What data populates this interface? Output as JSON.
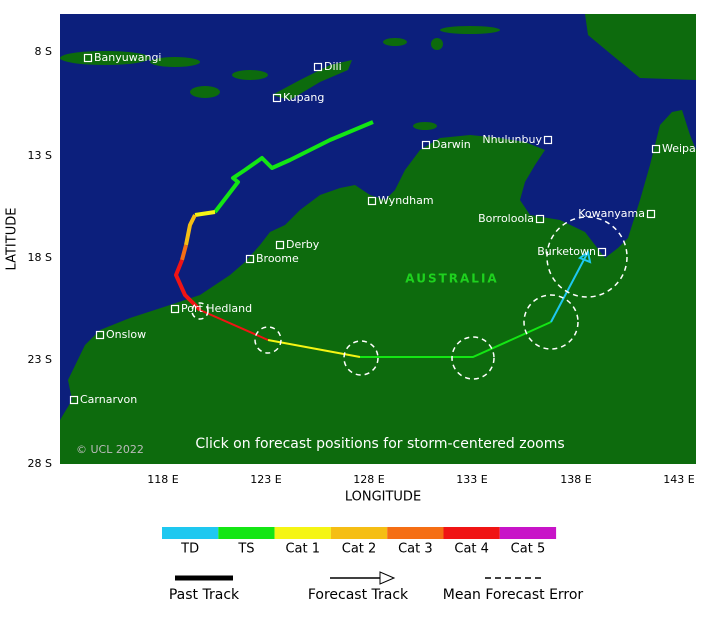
{
  "map": {
    "lat_ticks": [
      "8 S",
      "13 S",
      "18 S",
      "23 S",
      "28 S"
    ],
    "lon_ticks": [
      "118 E",
      "123 E",
      "128 E",
      "133 E",
      "138 E",
      "143 E"
    ],
    "y_label": "LATITUDE",
    "x_label": "LONGITUDE",
    "region_label": "AUSTRALIA",
    "copyright": "© UCL 2022",
    "instruction": "Click on forecast positions for storm-centered zooms",
    "places": [
      "Banyuwangi",
      "Dili",
      "Kupang",
      "Darwin",
      "Nhulunbuy",
      "Weipa",
      "Wyndham",
      "Borroloola",
      "Kowanyama",
      "Derby",
      "Broome",
      "Burketown",
      "Port Hedland",
      "Onslow",
      "Carnarvon"
    ]
  },
  "legend": {
    "categories": [
      {
        "label": "TD",
        "color": "#1ec8f0"
      },
      {
        "label": "TS",
        "color": "#14e614"
      },
      {
        "label": "Cat 1",
        "color": "#f5f514"
      },
      {
        "label": "Cat 2",
        "color": "#f5be14"
      },
      {
        "label": "Cat 3",
        "color": "#f56e14"
      },
      {
        "label": "Cat 4",
        "color": "#f01414"
      },
      {
        "label": "Cat 5",
        "color": "#c814c8"
      }
    ],
    "track_types": [
      "Past Track",
      "Forecast Track",
      "Mean Forecast Error"
    ]
  }
}
